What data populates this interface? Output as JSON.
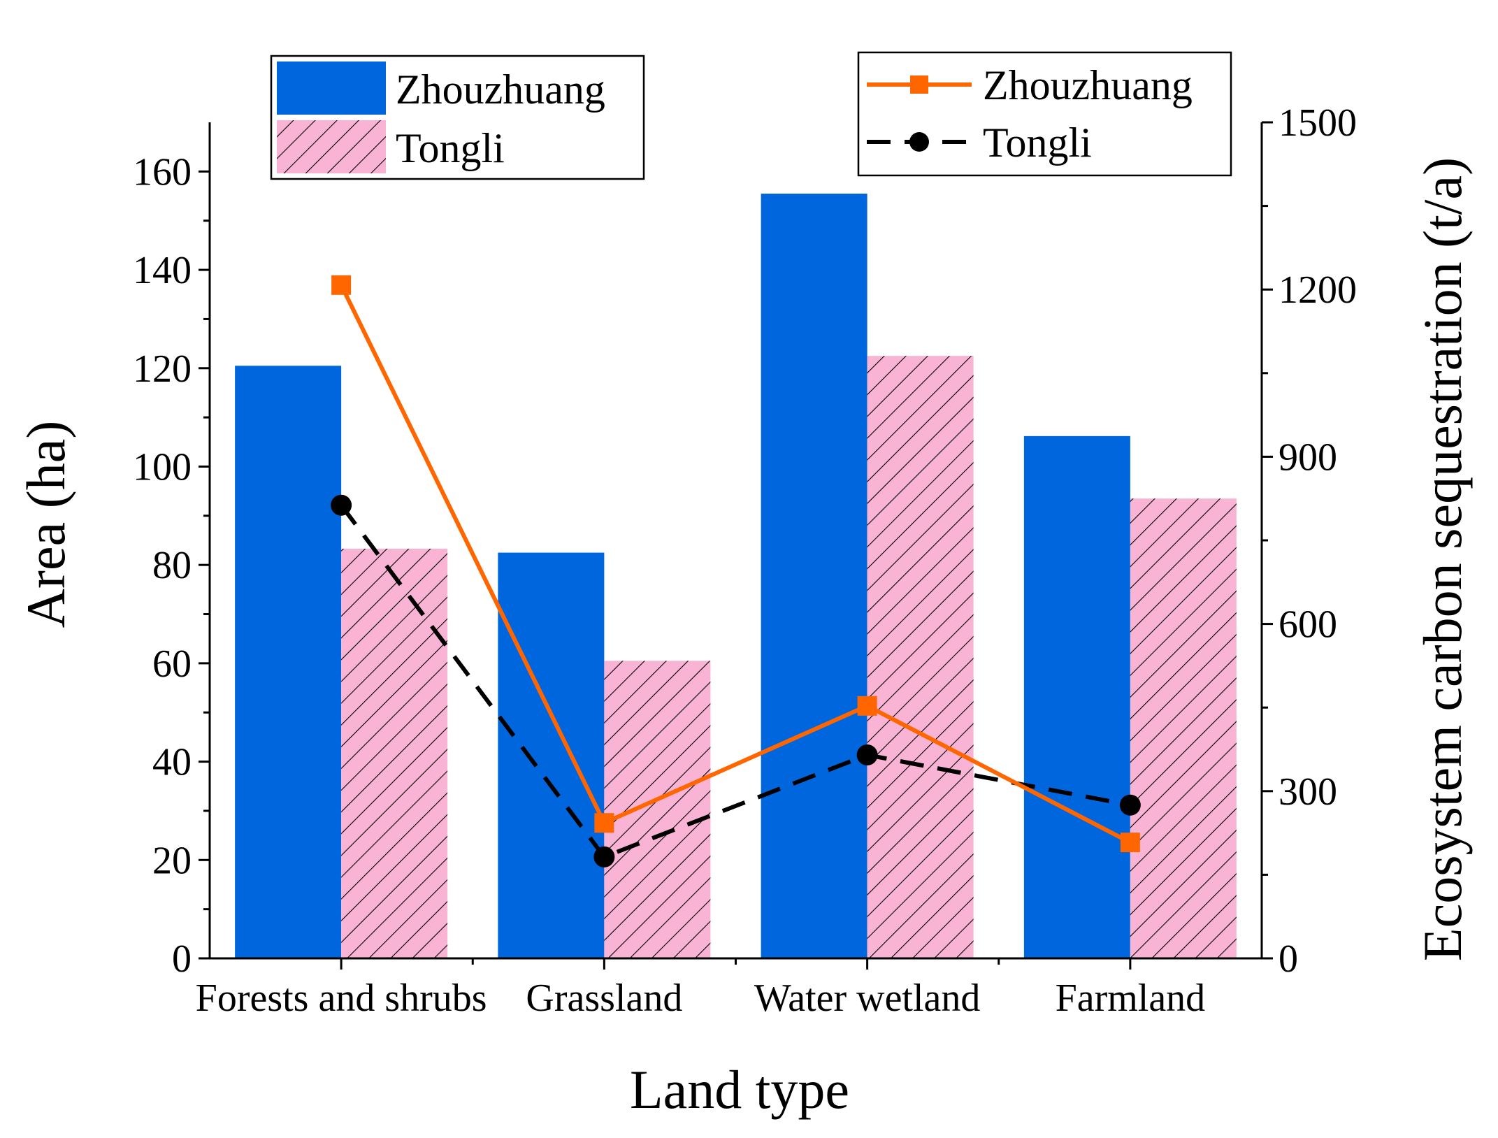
{
  "chart_data": {
    "type": "bar",
    "xlabel": "Land type",
    "ylabel": "Area (ha)",
    "y2label": "Ecosystem carbon sequestration (t/a)",
    "categories": [
      "Forests and shrubs",
      "Grassland",
      "Water wetland",
      "Farmland"
    ],
    "ylim": [
      0,
      170
    ],
    "yticks": [
      0,
      20,
      40,
      60,
      80,
      100,
      120,
      140,
      160
    ],
    "y2lim": [
      0,
      1500
    ],
    "y2ticks": [
      0,
      300,
      600,
      900,
      1200,
      1500
    ],
    "bar_series": [
      {
        "name": "Zhouzhuang",
        "values": [
          120.5,
          82.5,
          155.5,
          106.2
        ],
        "color": "#0066dd",
        "pattern": "solid"
      },
      {
        "name": "Tongli",
        "values": [
          83.3,
          60.5,
          122.5,
          93.5
        ],
        "color": "#f9b4d5",
        "pattern": "hatch"
      }
    ],
    "line_series": [
      {
        "name": "Zhouzhuang",
        "values": [
          1208,
          243,
          453,
          208
        ],
        "color": "#ff6600",
        "marker": "square",
        "dash": "solid"
      },
      {
        "name": "Tongli",
        "values": [
          813,
          182,
          365,
          275
        ],
        "color": "#000000",
        "marker": "circle",
        "dash": "dashed"
      }
    ],
    "grid": false,
    "legend_bars_position": "top-left",
    "legend_lines_position": "top-right"
  }
}
